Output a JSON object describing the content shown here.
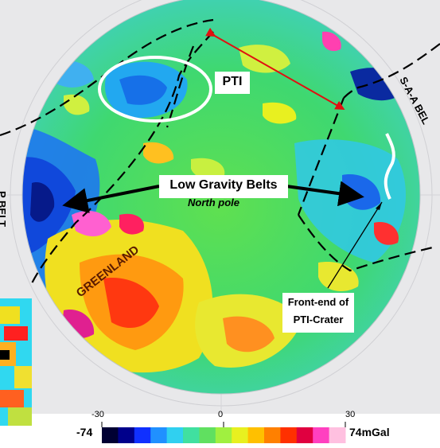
{
  "labels": {
    "pti": "PTI",
    "low_gravity": "Low Gravity Belts",
    "north_pole": "North pole",
    "greenland": "GREENLAND",
    "front_end_line1": "Front-end of",
    "front_end_line2": "PTI-Crater",
    "saa_belt": "S-A-A  BEL",
    "left_belt": "P BELT"
  },
  "colorbar": {
    "min_label": "-74",
    "max_label": "74mGal",
    "ticks": [
      "-30",
      "0",
      "30"
    ],
    "colors": [
      "#000033",
      "#00008b",
      "#1030ff",
      "#2090ff",
      "#30d0f0",
      "#40e0a0",
      "#60e060",
      "#a0f040",
      "#e8f020",
      "#ffc000",
      "#ff8000",
      "#ff3000",
      "#e00040",
      "#ff40c0",
      "#ffc0e0"
    ]
  },
  "colors": {
    "arrow_black": "#000000",
    "arrow_red": "#e01010",
    "ellipse": "#ffffff",
    "faults": "#000000"
  }
}
